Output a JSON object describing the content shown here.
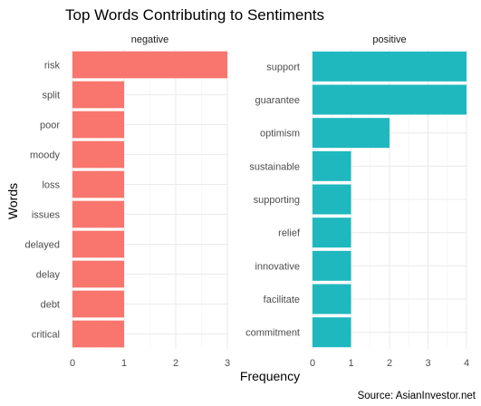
{
  "chart_data": {
    "type": "bar",
    "orientation": "horizontal",
    "title": "Top Words Contributing to Sentiments",
    "xlabel": "Frequency",
    "ylabel": "Words",
    "caption": "Source: AsianInvestor.net",
    "grid": true,
    "legend": "none",
    "facets": [
      {
        "name": "negative",
        "color": "#F8766D",
        "xlim": [
          0,
          3
        ],
        "xticks": [
          0,
          1,
          2,
          3
        ],
        "categories": [
          "risk",
          "split",
          "poor",
          "moody",
          "loss",
          "issues",
          "delayed",
          "delay",
          "debt",
          "critical"
        ],
        "values": [
          3,
          1,
          1,
          1,
          1,
          1,
          1,
          1,
          1,
          1
        ]
      },
      {
        "name": "positive",
        "color": "#1FB8BF",
        "xlim": [
          0,
          4
        ],
        "xticks": [
          0,
          1,
          2,
          3,
          4
        ],
        "categories": [
          "support",
          "guarantee",
          "optimism",
          "sustainable",
          "supporting",
          "relief",
          "innovative",
          "facilitate",
          "commitment"
        ],
        "values": [
          4,
          4,
          2,
          1,
          1,
          1,
          1,
          1,
          1
        ]
      }
    ]
  }
}
